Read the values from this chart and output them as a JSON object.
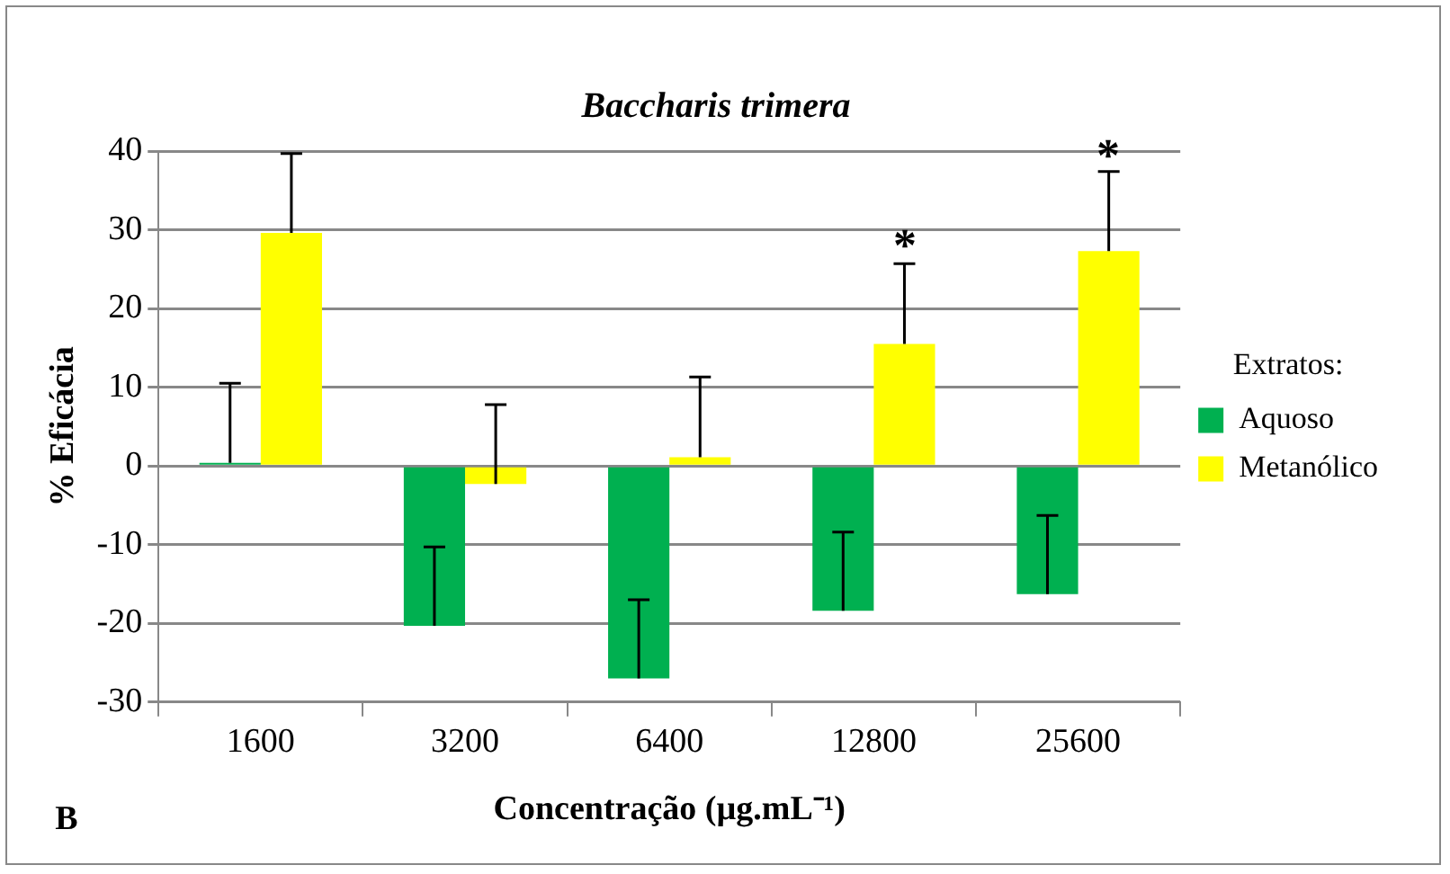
{
  "chart_data": {
    "type": "bar",
    "title": "Baccharis trimera",
    "xlabel": "Concentração (µg.mL⁻¹)",
    "ylabel": "% Eficácia",
    "legend_title": "Extratos:",
    "categories": [
      "1600",
      "3200",
      "6400",
      "12800",
      "25600"
    ],
    "series": [
      {
        "name": "Aquoso",
        "color": "#00b050",
        "values": [
          0.4,
          -20.3,
          -27,
          -18.4,
          -16.3
        ],
        "errors": [
          [
            0.4,
            10.5
          ],
          [
            -20.3,
            -10.3
          ],
          [
            -27,
            -17
          ],
          [
            -18.4,
            -8.4
          ],
          [
            -16.3,
            -6.3
          ]
        ]
      },
      {
        "name": "Metanólico",
        "color": "#ffff00",
        "values": [
          29.6,
          -2.3,
          1.1,
          15.5,
          27.3
        ],
        "errors": [
          [
            29.6,
            39.7
          ],
          [
            -2.3,
            7.8
          ],
          [
            1.1,
            11.3
          ],
          [
            15.5,
            25.7
          ],
          [
            27.3,
            37.4
          ]
        ]
      }
    ],
    "ylim": [
      -30,
      40
    ],
    "yticks": [
      -30,
      -20,
      -10,
      0,
      10,
      20,
      30,
      40
    ],
    "grid": "y",
    "legend": "right",
    "annotations": [
      "*",
      "*",
      "B"
    ]
  }
}
